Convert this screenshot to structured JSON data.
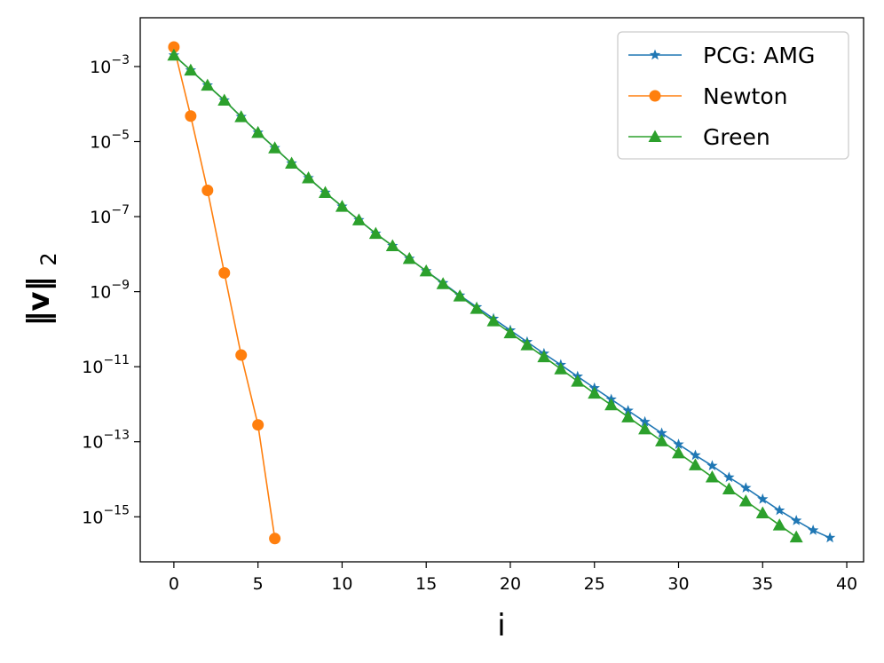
{
  "chart_data": {
    "type": "line",
    "title": "",
    "xlabel": "i",
    "ylabel": "‖v‖2",
    "ylabel_main": "‖v‖",
    "ylabel_sub": "2",
    "yscale": "log",
    "xlim": [
      -2,
      41
    ],
    "ylim_exponent": [
      -16.2,
      -1.7
    ],
    "xticks": [
      0,
      5,
      10,
      15,
      20,
      25,
      30,
      35,
      40
    ],
    "xtick_labels": [
      "0",
      "5",
      "10",
      "15",
      "20",
      "25",
      "30",
      "35",
      "40"
    ],
    "yticks_exponent": [
      -3,
      -5,
      -7,
      -9,
      -11,
      -13,
      -15
    ],
    "ytick_labels": [
      {
        "base": "10",
        "exp": "−3"
      },
      {
        "base": "10",
        "exp": "−5"
      },
      {
        "base": "10",
        "exp": "−7"
      },
      {
        "base": "10",
        "exp": "−9"
      },
      {
        "base": "10",
        "exp": "−11"
      },
      {
        "base": "10",
        "exp": "−13"
      },
      {
        "base": "10",
        "exp": "−15"
      }
    ],
    "legend_location": "top-right",
    "series": [
      {
        "name": "PCG: AMG",
        "color": "#1f77b4",
        "marker": "star",
        "x": [
          0,
          1,
          2,
          3,
          4,
          5,
          6,
          7,
          8,
          9,
          10,
          11,
          12,
          13,
          14,
          15,
          16,
          17,
          18,
          19,
          20,
          21,
          22,
          23,
          24,
          25,
          26,
          27,
          28,
          29,
          30,
          31,
          32,
          33,
          34,
          35,
          36,
          37,
          38,
          39
        ],
        "log10_y": [
          -2.7,
          -3.1,
          -3.5,
          -3.9,
          -4.34,
          -4.76,
          -5.17,
          -5.58,
          -5.97,
          -6.36,
          -6.73,
          -7.09,
          -7.45,
          -7.78,
          -8.12,
          -8.45,
          -8.77,
          -9.1,
          -9.41,
          -9.72,
          -10.03,
          -10.34,
          -10.65,
          -10.95,
          -11.26,
          -11.57,
          -11.87,
          -12.17,
          -12.47,
          -12.77,
          -13.07,
          -13.36,
          -13.64,
          -13.95,
          -14.23,
          -14.53,
          -14.83,
          -15.1,
          -15.36,
          -15.56
        ]
      },
      {
        "name": "Newton",
        "color": "#ff7f0e",
        "marker": "circle",
        "x": [
          0,
          1,
          2,
          3,
          4,
          5,
          6
        ],
        "log10_y": [
          -2.48,
          -4.32,
          -6.3,
          -8.5,
          -10.69,
          -12.55,
          -15.58
        ]
      },
      {
        "name": "Green",
        "color": "#2ca02c",
        "marker": "triangle",
        "x": [
          0,
          1,
          2,
          3,
          4,
          5,
          6,
          7,
          8,
          9,
          10,
          11,
          12,
          13,
          14,
          15,
          16,
          17,
          18,
          19,
          20,
          21,
          22,
          23,
          24,
          25,
          26,
          27,
          28,
          29,
          30,
          31,
          32,
          33,
          34,
          35,
          36,
          37
        ],
        "log10_y": [
          -2.7,
          -3.1,
          -3.5,
          -3.9,
          -4.34,
          -4.76,
          -5.17,
          -5.58,
          -5.97,
          -6.36,
          -6.73,
          -7.09,
          -7.45,
          -7.78,
          -8.12,
          -8.45,
          -8.79,
          -9.12,
          -9.45,
          -9.78,
          -10.1,
          -10.42,
          -10.74,
          -11.06,
          -11.39,
          -11.71,
          -12.02,
          -12.34,
          -12.66,
          -12.98,
          -13.3,
          -13.62,
          -13.94,
          -14.26,
          -14.58,
          -14.9,
          -15.22,
          -15.54
        ]
      }
    ]
  }
}
